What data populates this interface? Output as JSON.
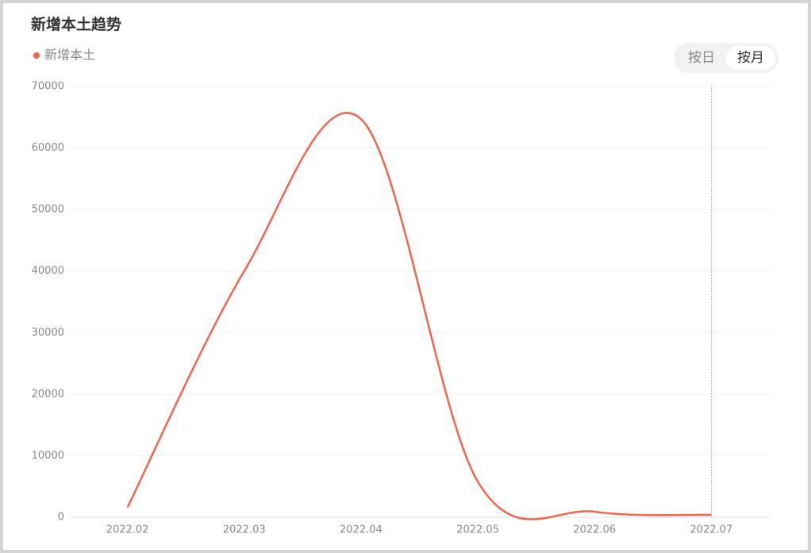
{
  "chart_data": {
    "type": "line",
    "title": "新增本土趋势",
    "categories": [
      "2022.02",
      "2022.03",
      "2022.04",
      "2022.05",
      "2022.06",
      "2022.07"
    ],
    "series": [
      {
        "name": "新增本土",
        "color": "#f2654f",
        "values": [
          1600,
          40000,
          64700,
          5800,
          900,
          400
        ]
      }
    ],
    "ylim": [
      0,
      70000
    ],
    "yticks": [
      0,
      10000,
      20000,
      30000,
      40000,
      50000,
      60000,
      70000
    ],
    "grid": true,
    "smooth": true
  },
  "toggle": {
    "options": [
      "按日",
      "按月"
    ],
    "selected": 1
  }
}
